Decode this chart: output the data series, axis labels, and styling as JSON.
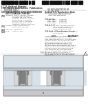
{
  "background_color": "#ffffff",
  "barcode_color": "#111111",
  "text_color": "#333333",
  "light_gray": "#aaaaaa",
  "diagram": {
    "substrate_color": "#c8c8cc",
    "sti_color": "#d8d8d8",
    "well_color": "#b8c0c8",
    "gate_metal_color": "#808080",
    "gate_oxide_color": "#d0d8e0",
    "spacer_color": "#b8b8b8",
    "ild_color": "#d8e0e8",
    "silicide_color": "#909090",
    "cap_color": "#c0c8d0",
    "outline_color": "#555555"
  }
}
